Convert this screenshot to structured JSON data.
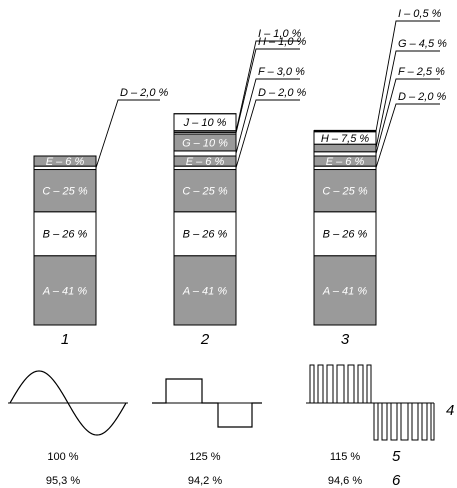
{
  "colors": {
    "gray": "#9a9a9a",
    "white": "#ffffff",
    "black": "#000000"
  },
  "columns": [
    {
      "number": "1",
      "segments": [
        {
          "key": "A",
          "label": "A – 41 %",
          "value": 41,
          "fill": "gray"
        },
        {
          "key": "B",
          "label": "B – 26 %",
          "value": 26,
          "fill": "white"
        },
        {
          "key": "C",
          "label": "C – 25 %",
          "value": 25,
          "fill": "gray"
        },
        {
          "key": "D",
          "label": "",
          "value": 2,
          "fill": "white"
        },
        {
          "key": "E",
          "label": "E – 6 %",
          "value": 6,
          "fill": "gray"
        }
      ],
      "callouts": [
        {
          "segment": "D",
          "text": "D – 2,0 %"
        }
      ]
    },
    {
      "number": "2",
      "segments": [
        {
          "key": "A",
          "label": "A – 41 %",
          "value": 41,
          "fill": "gray"
        },
        {
          "key": "B",
          "label": "B – 26 %",
          "value": 26,
          "fill": "white"
        },
        {
          "key": "C",
          "label": "C – 25 %",
          "value": 25,
          "fill": "gray"
        },
        {
          "key": "D",
          "label": "",
          "value": 2,
          "fill": "white"
        },
        {
          "key": "E",
          "label": "E – 6 %",
          "value": 6,
          "fill": "gray"
        },
        {
          "key": "F",
          "label": "",
          "value": 3,
          "fill": "white"
        },
        {
          "key": "G",
          "label": "G – 10 %",
          "value": 10,
          "fill": "gray"
        },
        {
          "key": "H",
          "label": "",
          "value": 1,
          "fill": "white"
        },
        {
          "key": "I",
          "label": "",
          "value": 1,
          "fill": "gray"
        },
        {
          "key": "J",
          "label": "J – 10 %",
          "value": 10,
          "fill": "white"
        }
      ],
      "callouts": [
        {
          "segment": "D",
          "text": "D – 2,0 %"
        },
        {
          "segment": "F",
          "text": "F – 3,0 %"
        },
        {
          "segment": "H",
          "text": "H – 1,0 %"
        },
        {
          "segment": "I",
          "text": "I – 1,0 %"
        }
      ]
    },
    {
      "number": "3",
      "segments": [
        {
          "key": "A",
          "label": "A – 41 %",
          "value": 41,
          "fill": "gray"
        },
        {
          "key": "B",
          "label": "B – 26 %",
          "value": 26,
          "fill": "white"
        },
        {
          "key": "C",
          "label": "C – 25 %",
          "value": 25,
          "fill": "gray"
        },
        {
          "key": "D",
          "label": "",
          "value": 2,
          "fill": "white"
        },
        {
          "key": "E",
          "label": "E – 6 %",
          "value": 6,
          "fill": "gray"
        },
        {
          "key": "F",
          "label": "",
          "value": 2.5,
          "fill": "white"
        },
        {
          "key": "G",
          "label": "",
          "value": 4.5,
          "fill": "gray"
        },
        {
          "key": "H",
          "label": "H – 7,5 %",
          "value": 7.5,
          "fill": "white"
        },
        {
          "key": "I",
          "label": "",
          "value": 0.5,
          "fill": "black"
        }
      ],
      "callouts": [
        {
          "segment": "D",
          "text": "D – 2,0 %"
        },
        {
          "segment": "F",
          "text": "F – 2,5 %"
        },
        {
          "segment": "G",
          "text": "G – 4,5 %"
        },
        {
          "segment": "I",
          "text": "I – 0,5 %"
        }
      ]
    }
  ],
  "waveforms": [
    {
      "type": "sine",
      "percent": "100 %",
      "efficiency": "95,3 %"
    },
    {
      "type": "square",
      "percent": "125 %",
      "efficiency": "94,2 %"
    },
    {
      "type": "pwm",
      "percent": "115 %",
      "efficiency": "94,6 %"
    }
  ],
  "row_numbers": {
    "waveform": "4",
    "percent": "5",
    "efficiency": "6"
  }
}
